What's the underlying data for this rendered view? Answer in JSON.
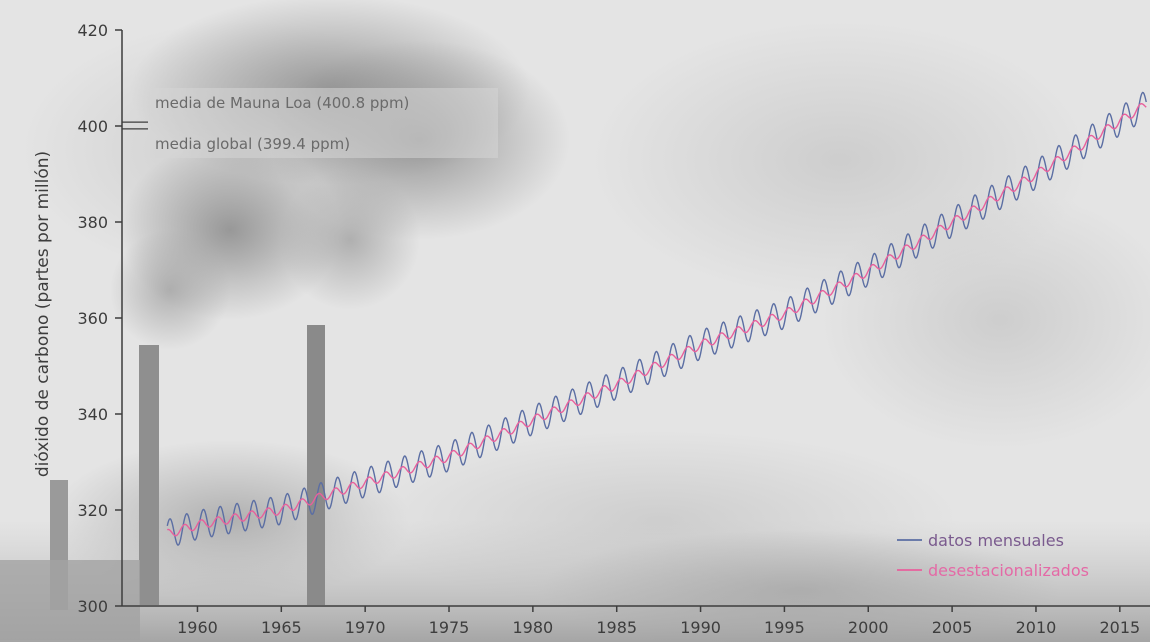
{
  "colors": {
    "monthly": "#5b6ea3",
    "deseasonalized": "#e8609c",
    "legend_monthly_text": "#7a5a8e",
    "legend_deseasonalized_text": "#e46aa6",
    "axis": "#3d3d3d",
    "annotation": "#6a6a6a"
  },
  "chart_data": {
    "type": "line",
    "title": "",
    "xlabel": "",
    "ylabel": "dióxido de carbono (partes por millón)",
    "xlim": [
      1955.5,
      2016.8
    ],
    "ylim": [
      300,
      420
    ],
    "x_ticks": [
      1960,
      1965,
      1970,
      1975,
      1980,
      1985,
      1990,
      1995,
      2000,
      2005,
      2010,
      2015
    ],
    "y_ticks": [
      300,
      320,
      340,
      360,
      380,
      400,
      420
    ],
    "grid": false,
    "legend_position": "bottom-right",
    "legend": [
      "datos mensuales",
      "desestacionalizados"
    ],
    "series": [
      {
        "name": "datos mensuales",
        "description_source": "monthly Mauna Loa readings with seasonal cycle",
        "trend_points": {
          "x": [
            1958.2,
            1960,
            1965,
            1970,
            1975,
            1980,
            1985,
            1990,
            1995,
            2000,
            2005,
            2010,
            2015,
            2016.6
          ],
          "y": [
            315.0,
            316.9,
            320.0,
            325.7,
            331.1,
            338.7,
            346.1,
            354.4,
            360.8,
            369.7,
            379.9,
            389.9,
            401.0,
            404.5
          ]
        },
        "seasonal_amplitude_ppm": 3.0,
        "cycle_years": 1.0
      },
      {
        "name": "desestacionalizados",
        "trend_points": {
          "x": [
            1958.2,
            1960,
            1965,
            1970,
            1975,
            1980,
            1985,
            1990,
            1995,
            2000,
            2005,
            2010,
            2015,
            2016.6
          ],
          "y": [
            315.0,
            316.9,
            320.0,
            325.7,
            331.1,
            338.7,
            346.1,
            354.4,
            360.8,
            369.7,
            379.9,
            389.9,
            401.0,
            404.5
          ]
        },
        "residual_amplitude_ppm": 0.9
      }
    ],
    "annotations": [
      {
        "text": "media de Mauna Loa (400.8 ppm)",
        "y": 400.8
      },
      {
        "text": "media global (399.4 ppm)",
        "y": 399.4
      }
    ]
  }
}
